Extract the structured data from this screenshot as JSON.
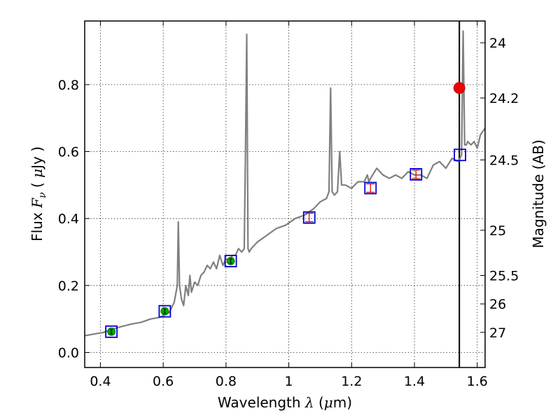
{
  "chart_data": {
    "type": "line",
    "title": "",
    "xlabel": {
      "prefix": "Wavelength  ",
      "symbol": "λ",
      "unit_open": " (",
      "unit_mu": "μ",
      "unit_rest": "m)"
    },
    "ylabel": {
      "prefix": "Flux  ",
      "symbol": "F",
      "sub": "ν",
      "unit_open": "  ( ",
      "unit_mu": "μ",
      "unit_rest": "Jy )"
    },
    "y2label": "Magnitude (AB)",
    "xlim": [
      0.35,
      1.625
    ],
    "ylim": [
      -0.045,
      0.99
    ],
    "x_ticks": [
      0.4,
      0.6,
      0.8,
      1.0,
      1.2,
      1.4,
      1.6
    ],
    "x_tick_labels": [
      "0.4",
      "0.6",
      "0.8",
      "1",
      "1.2",
      "1.4",
      "1.6"
    ],
    "y_ticks": [
      0.0,
      0.2,
      0.4,
      0.6,
      0.8
    ],
    "y_tick_labels": [
      "0.0",
      "0.2",
      "0.4",
      "0.6",
      "0.8"
    ],
    "y2_ticks": [
      {
        "flux": 0.925,
        "label": "24"
      },
      {
        "flux": 0.76,
        "label": "24.2"
      },
      {
        "flux": 0.575,
        "label": "24.5"
      },
      {
        "flux": 0.365,
        "label": "25"
      },
      {
        "flux": 0.23,
        "label": "25.5"
      },
      {
        "flux": 0.145,
        "label": "26"
      },
      {
        "flux": 0.06,
        "label": "27"
      }
    ],
    "grid": true,
    "vertical_line_x": 1.543,
    "series": [
      {
        "kind": "spectrum",
        "color": "#808080",
        "x": [
          0.35,
          0.38,
          0.41,
          0.44,
          0.47,
          0.5,
          0.53,
          0.56,
          0.59,
          0.62,
          0.635,
          0.645,
          0.648,
          0.652,
          0.658,
          0.665,
          0.672,
          0.68,
          0.685,
          0.69,
          0.7,
          0.71,
          0.72,
          0.73,
          0.74,
          0.75,
          0.76,
          0.77,
          0.78,
          0.79,
          0.8,
          0.81,
          0.82,
          0.83,
          0.84,
          0.85,
          0.858,
          0.862,
          0.866,
          0.87,
          0.874,
          0.88,
          0.9,
          0.93,
          0.96,
          0.99,
          1.02,
          1.05,
          1.08,
          1.1,
          1.12,
          1.128,
          1.133,
          1.138,
          1.145,
          1.155,
          1.162,
          1.168,
          1.18,
          1.2,
          1.22,
          1.24,
          1.25,
          1.255,
          1.26,
          1.28,
          1.3,
          1.32,
          1.34,
          1.36,
          1.38,
          1.4,
          1.42,
          1.44,
          1.46,
          1.48,
          1.5,
          1.52,
          1.54,
          1.55,
          1.555,
          1.56,
          1.565,
          1.57,
          1.58,
          1.59,
          1.6,
          1.61,
          1.625
        ],
        "y": [
          0.05,
          0.055,
          0.06,
          0.07,
          0.078,
          0.085,
          0.09,
          0.1,
          0.105,
          0.12,
          0.15,
          0.2,
          0.39,
          0.2,
          0.16,
          0.14,
          0.2,
          0.17,
          0.23,
          0.18,
          0.21,
          0.2,
          0.23,
          0.24,
          0.26,
          0.25,
          0.27,
          0.25,
          0.29,
          0.26,
          0.28,
          0.27,
          0.29,
          0.29,
          0.31,
          0.3,
          0.31,
          0.6,
          0.95,
          0.31,
          0.3,
          0.31,
          0.33,
          0.35,
          0.37,
          0.38,
          0.4,
          0.41,
          0.43,
          0.45,
          0.46,
          0.48,
          0.79,
          0.48,
          0.47,
          0.48,
          0.6,
          0.5,
          0.5,
          0.49,
          0.51,
          0.51,
          0.53,
          0.51,
          0.52,
          0.55,
          0.53,
          0.52,
          0.53,
          0.52,
          0.54,
          0.53,
          0.53,
          0.52,
          0.56,
          0.57,
          0.55,
          0.58,
          0.57,
          0.59,
          0.96,
          0.62,
          0.62,
          0.63,
          0.62,
          0.63,
          0.61,
          0.65,
          0.67
        ]
      },
      {
        "kind": "model_photometry",
        "marker": "square",
        "color": "#0000cc",
        "x": [
          0.435,
          0.605,
          0.815,
          1.065,
          1.26,
          1.405,
          1.545
        ],
        "y": [
          0.062,
          0.123,
          0.273,
          0.403,
          0.491,
          0.532,
          0.59
        ]
      },
      {
        "kind": "measured",
        "marker": "circle",
        "color": "#00aa00",
        "x": [
          0.435,
          0.605,
          0.815
        ],
        "y": [
          0.062,
          0.123,
          0.273
        ]
      },
      {
        "kind": "upper_limits",
        "marker": "errorbar",
        "color": "#cc0000",
        "x": [
          1.065,
          1.26,
          1.405
        ],
        "y": [
          0.403,
          0.491,
          0.532
        ]
      },
      {
        "kind": "highlight",
        "marker": "circle",
        "color": "#ee0000",
        "x": [
          1.543
        ],
        "y": [
          0.79
        ]
      }
    ]
  }
}
